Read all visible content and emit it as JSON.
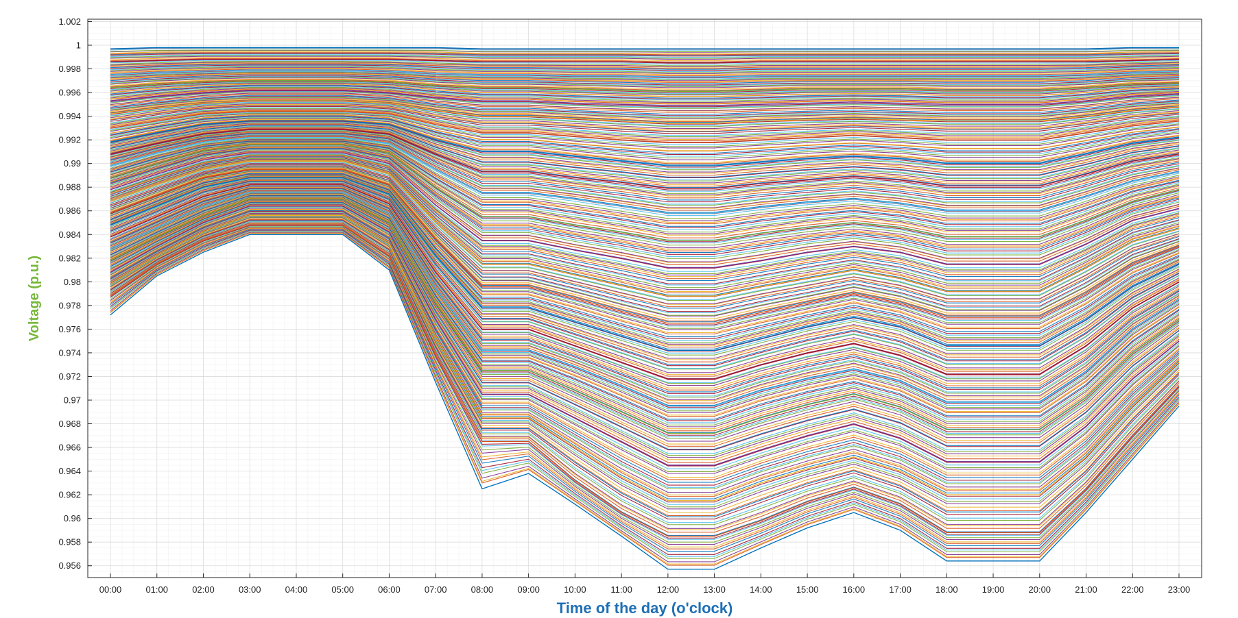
{
  "chart_data": {
    "type": "line",
    "title": "",
    "xlabel": "Time of the day (o'clock)",
    "ylabel": "Voltage (p.u.)",
    "xlabel_color": "#1f6fb5",
    "ylabel_color": "#77b83a",
    "categories": [
      "00:00",
      "01:00",
      "02:00",
      "03:00",
      "04:00",
      "05:00",
      "06:00",
      "07:00",
      "08:00",
      "09:00",
      "10:00",
      "11:00",
      "12:00",
      "13:00",
      "14:00",
      "15:00",
      "16:00",
      "17:00",
      "18:00",
      "19:00",
      "20:00",
      "21:00",
      "22:00",
      "23:00"
    ],
    "yticks": [
      "0.956",
      "0.958",
      "0.96",
      "0.962",
      "0.964",
      "0.966",
      "0.968",
      "0.97",
      "0.972",
      "0.974",
      "0.976",
      "0.978",
      "0.98",
      "0.982",
      "0.984",
      "0.986",
      "0.988",
      "0.99",
      "0.992",
      "0.994",
      "0.996",
      "0.998",
      "1",
      "1.002"
    ],
    "ylim": [
      0.955,
      1.0022
    ],
    "grid": "on, with minor grid",
    "legend": "none",
    "series_description": "Several hundred bus-voltage profiles; listed envelope curves (bottom to top) bound the family",
    "envelope_profiles": [
      {
        "values": [
          0.9772,
          0.9805,
          0.9825,
          0.984,
          0.984,
          0.984,
          0.981,
          0.9715,
          0.9625,
          0.9638,
          0.9612,
          0.9585,
          0.9557,
          0.9557,
          0.9575,
          0.9592,
          0.9605,
          0.959,
          0.9564,
          0.9564,
          0.9564,
          0.9605,
          0.965,
          0.9695
        ]
      },
      {
        "values": [
          0.9788,
          0.9815,
          0.9835,
          0.9848,
          0.9848,
          0.9848,
          0.9822,
          0.9738,
          0.9665,
          0.9665,
          0.9632,
          0.9605,
          0.9585,
          0.9585,
          0.9598,
          0.9614,
          0.9626,
          0.9612,
          0.9588,
          0.9588,
          0.9588,
          0.9625,
          0.967,
          0.9712
        ]
      },
      {
        "values": [
          0.9798,
          0.9822,
          0.9842,
          0.9856,
          0.9856,
          0.9856,
          0.9832,
          0.9752,
          0.9685,
          0.9685,
          0.966,
          0.9635,
          0.9615,
          0.9615,
          0.963,
          0.9642,
          0.9652,
          0.964,
          0.962,
          0.962,
          0.962,
          0.9652,
          0.9695,
          0.9732
        ]
      },
      {
        "values": [
          0.9808,
          0.983,
          0.985,
          0.9864,
          0.9864,
          0.9864,
          0.9842,
          0.9768,
          0.9705,
          0.9705,
          0.9685,
          0.9665,
          0.9645,
          0.9645,
          0.9658,
          0.967,
          0.968,
          0.9668,
          0.9648,
          0.9648,
          0.9648,
          0.9678,
          0.9718,
          0.975
        ]
      },
      {
        "values": [
          0.9818,
          0.9838,
          0.9856,
          0.987,
          0.987,
          0.987,
          0.985,
          0.9782,
          0.9725,
          0.9725,
          0.9708,
          0.969,
          0.9672,
          0.9672,
          0.9685,
          0.9696,
          0.9705,
          0.9694,
          0.9675,
          0.9675,
          0.9675,
          0.9702,
          0.974,
          0.9768
        ]
      },
      {
        "values": [
          0.9828,
          0.9846,
          0.9864,
          0.9876,
          0.9876,
          0.9876,
          0.9858,
          0.9795,
          0.9742,
          0.9742,
          0.9728,
          0.9712,
          0.9695,
          0.9695,
          0.9708,
          0.9718,
          0.9726,
          0.9716,
          0.9698,
          0.9698,
          0.9698,
          0.9724,
          0.976,
          0.9785
        ]
      },
      {
        "values": [
          0.9838,
          0.9855,
          0.9872,
          0.9882,
          0.9882,
          0.9882,
          0.9866,
          0.9808,
          0.976,
          0.976,
          0.9746,
          0.9732,
          0.9718,
          0.9718,
          0.973,
          0.974,
          0.9748,
          0.9738,
          0.9722,
          0.9722,
          0.9722,
          0.9746,
          0.9778,
          0.98
        ]
      },
      {
        "values": [
          0.9848,
          0.9864,
          0.988,
          0.9888,
          0.9888,
          0.9888,
          0.9874,
          0.9822,
          0.9778,
          0.9778,
          0.9766,
          0.9754,
          0.9742,
          0.9742,
          0.9752,
          0.9762,
          0.977,
          0.9762,
          0.9746,
          0.9746,
          0.9746,
          0.9768,
          0.9796,
          0.9815
        ]
      },
      {
        "values": [
          0.9858,
          0.9873,
          0.9888,
          0.9895,
          0.9895,
          0.9895,
          0.9882,
          0.9836,
          0.9796,
          0.9796,
          0.9786,
          0.9775,
          0.9765,
          0.9765,
          0.9774,
          0.9782,
          0.979,
          0.9782,
          0.977,
          0.977,
          0.977,
          0.979,
          0.9815,
          0.983
        ]
      },
      {
        "values": [
          0.9868,
          0.9882,
          0.9895,
          0.9902,
          0.9902,
          0.9902,
          0.9891,
          0.985,
          0.9815,
          0.9815,
          0.9806,
          0.9797,
          0.9788,
          0.9788,
          0.9796,
          0.9803,
          0.981,
          0.9803,
          0.9792,
          0.9792,
          0.9792,
          0.9812,
          0.9834,
          0.9845
        ]
      },
      {
        "values": [
          0.9878,
          0.9891,
          0.9903,
          0.9909,
          0.9909,
          0.9909,
          0.99,
          0.9865,
          0.9835,
          0.9835,
          0.9827,
          0.982,
          0.9812,
          0.9812,
          0.9818,
          0.9825,
          0.983,
          0.9825,
          0.9815,
          0.9815,
          0.9815,
          0.9832,
          0.9852,
          0.9862
        ]
      },
      {
        "values": [
          0.9888,
          0.99,
          0.9911,
          0.9916,
          0.9916,
          0.9916,
          0.9909,
          0.988,
          0.9855,
          0.9855,
          0.9848,
          0.9842,
          0.9835,
          0.9835,
          0.9841,
          0.9846,
          0.985,
          0.9846,
          0.9838,
          0.9838,
          0.9838,
          0.9852,
          0.9868,
          0.9878
        ]
      },
      {
        "values": [
          0.9898,
          0.9909,
          0.9918,
          0.9922,
          0.9922,
          0.9922,
          0.9917,
          0.9895,
          0.9875,
          0.9875,
          0.987,
          0.9864,
          0.9858,
          0.9858,
          0.9863,
          0.9867,
          0.987,
          0.9866,
          0.986,
          0.986,
          0.986,
          0.9872,
          0.9885,
          0.9893
        ]
      },
      {
        "values": [
          0.9908,
          0.9917,
          0.9925,
          0.9929,
          0.9929,
          0.9929,
          0.9925,
          0.9908,
          0.9893,
          0.9893,
          0.9888,
          0.9884,
          0.9879,
          0.9879,
          0.9883,
          0.9886,
          0.9889,
          0.9886,
          0.9881,
          0.9881,
          0.9881,
          0.9891,
          0.9902,
          0.9908
        ]
      },
      {
        "values": [
          0.9918,
          0.9926,
          0.9933,
          0.9936,
          0.9936,
          0.9936,
          0.9933,
          0.992,
          0.991,
          0.991,
          0.9906,
          0.9902,
          0.9898,
          0.9898,
          0.9901,
          0.9904,
          0.9906,
          0.9904,
          0.99,
          0.99,
          0.99,
          0.9908,
          0.9917,
          0.9922
        ]
      },
      {
        "values": [
          0.993,
          0.9936,
          0.9942,
          0.9944,
          0.9944,
          0.9944,
          0.9942,
          0.9933,
          0.9926,
          0.9926,
          0.9923,
          0.992,
          0.9918,
          0.9918,
          0.992,
          0.9922,
          0.9924,
          0.9922,
          0.992,
          0.992,
          0.992,
          0.9926,
          0.9932,
          0.9936
        ]
      },
      {
        "values": [
          0.9942,
          0.9947,
          0.9951,
          0.9953,
          0.9953,
          0.9953,
          0.9951,
          0.9945,
          0.994,
          0.994,
          0.9938,
          0.9936,
          0.9934,
          0.9934,
          0.9936,
          0.9937,
          0.9938,
          0.9937,
          0.9936,
          0.9936,
          0.9936,
          0.994,
          0.9945,
          0.9948
        ]
      },
      {
        "values": [
          0.9953,
          0.9957,
          0.996,
          0.9962,
          0.9962,
          0.9962,
          0.996,
          0.9956,
          0.9953,
          0.9953,
          0.9951,
          0.995,
          0.9949,
          0.9949,
          0.995,
          0.9951,
          0.9952,
          0.9951,
          0.995,
          0.995,
          0.995,
          0.9953,
          0.9957,
          0.9959
        ]
      },
      {
        "values": [
          0.9964,
          0.9967,
          0.9969,
          0.997,
          0.997,
          0.997,
          0.9969,
          0.9966,
          0.9964,
          0.9964,
          0.9963,
          0.9962,
          0.9961,
          0.9961,
          0.9962,
          0.9963,
          0.9963,
          0.9963,
          0.9962,
          0.9962,
          0.9962,
          0.9964,
          0.9967,
          0.9968
        ]
      },
      {
        "values": [
          0.9975,
          0.9977,
          0.9978,
          0.9979,
          0.9979,
          0.9979,
          0.9978,
          0.9976,
          0.9975,
          0.9975,
          0.9974,
          0.9974,
          0.9973,
          0.9973,
          0.9974,
          0.9974,
          0.9974,
          0.9974,
          0.9974,
          0.9974,
          0.9974,
          0.9975,
          0.9977,
          0.9978
        ]
      },
      {
        "values": [
          0.9986,
          0.9987,
          0.9988,
          0.9988,
          0.9988,
          0.9988,
          0.9988,
          0.9987,
          0.9986,
          0.9986,
          0.9986,
          0.9986,
          0.9985,
          0.9985,
          0.9986,
          0.9986,
          0.9986,
          0.9986,
          0.9986,
          0.9986,
          0.9986,
          0.9986,
          0.9987,
          0.9988
        ]
      },
      {
        "values": [
          0.9997,
          0.9998,
          0.9998,
          0.9998,
          0.9998,
          0.9998,
          0.9998,
          0.9998,
          0.9997,
          0.9997,
          0.9997,
          0.9997,
          0.9997,
          0.9997,
          0.9997,
          0.9997,
          0.9997,
          0.9997,
          0.9997,
          0.9997,
          0.9997,
          0.9997,
          0.9998,
          0.9998
        ]
      }
    ],
    "line_colors": [
      "#0072bd",
      "#d95319",
      "#edb120",
      "#7e2f8e",
      "#77ac30",
      "#4dbeee",
      "#a2142f"
    ]
  }
}
